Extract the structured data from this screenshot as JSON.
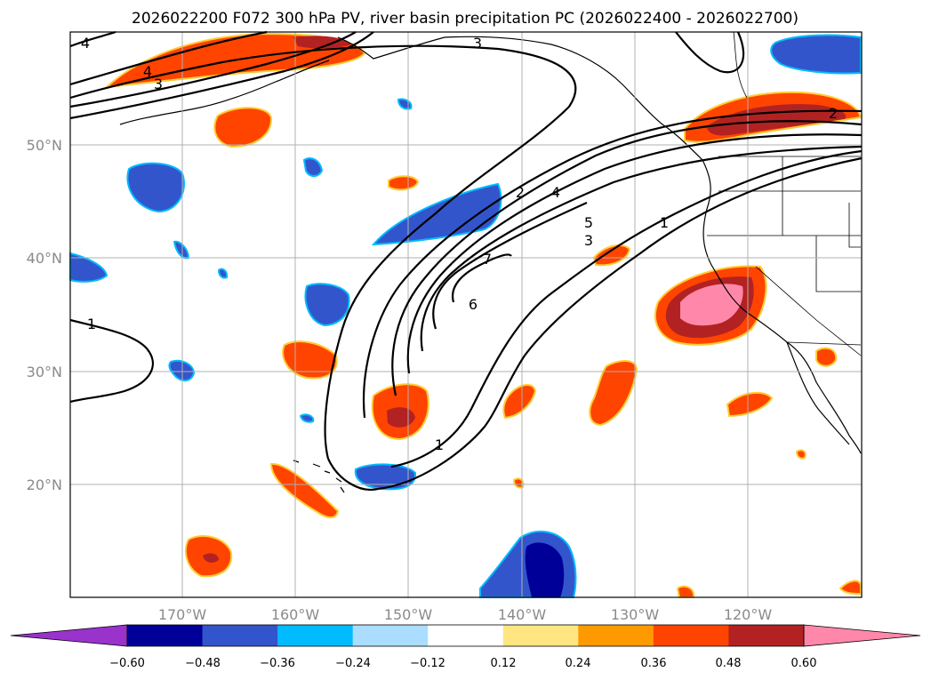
{
  "title": "2026022200 F072 300 hPa PV, river basin precipitation PC (2026022400 - 2026022700)",
  "map": {
    "lat_labels": [
      "50°N",
      "40°N",
      "30°N",
      "20°N"
    ],
    "lon_labels": [
      "170°W",
      "160°W",
      "150°W",
      "140°W",
      "130°W",
      "120°W"
    ]
  },
  "contour_labels": [
    "4",
    "4",
    "3",
    "3",
    "2",
    "2",
    "4",
    "5",
    "3",
    "7",
    "6",
    "1",
    "1",
    "1"
  ],
  "colorbar": {
    "ticks": [
      "−0.60",
      "−0.48",
      "−0.36",
      "−0.24",
      "−0.12",
      "0.12",
      "0.24",
      "0.36",
      "0.48",
      "0.60"
    ],
    "colors": [
      "#9933cc",
      "#000099",
      "#3355cc",
      "#00bbff",
      "#aaddff",
      "#ffffff",
      "#ffe680",
      "#ff9900",
      "#ff4400",
      "#b22222",
      "#ff88aa"
    ]
  }
}
